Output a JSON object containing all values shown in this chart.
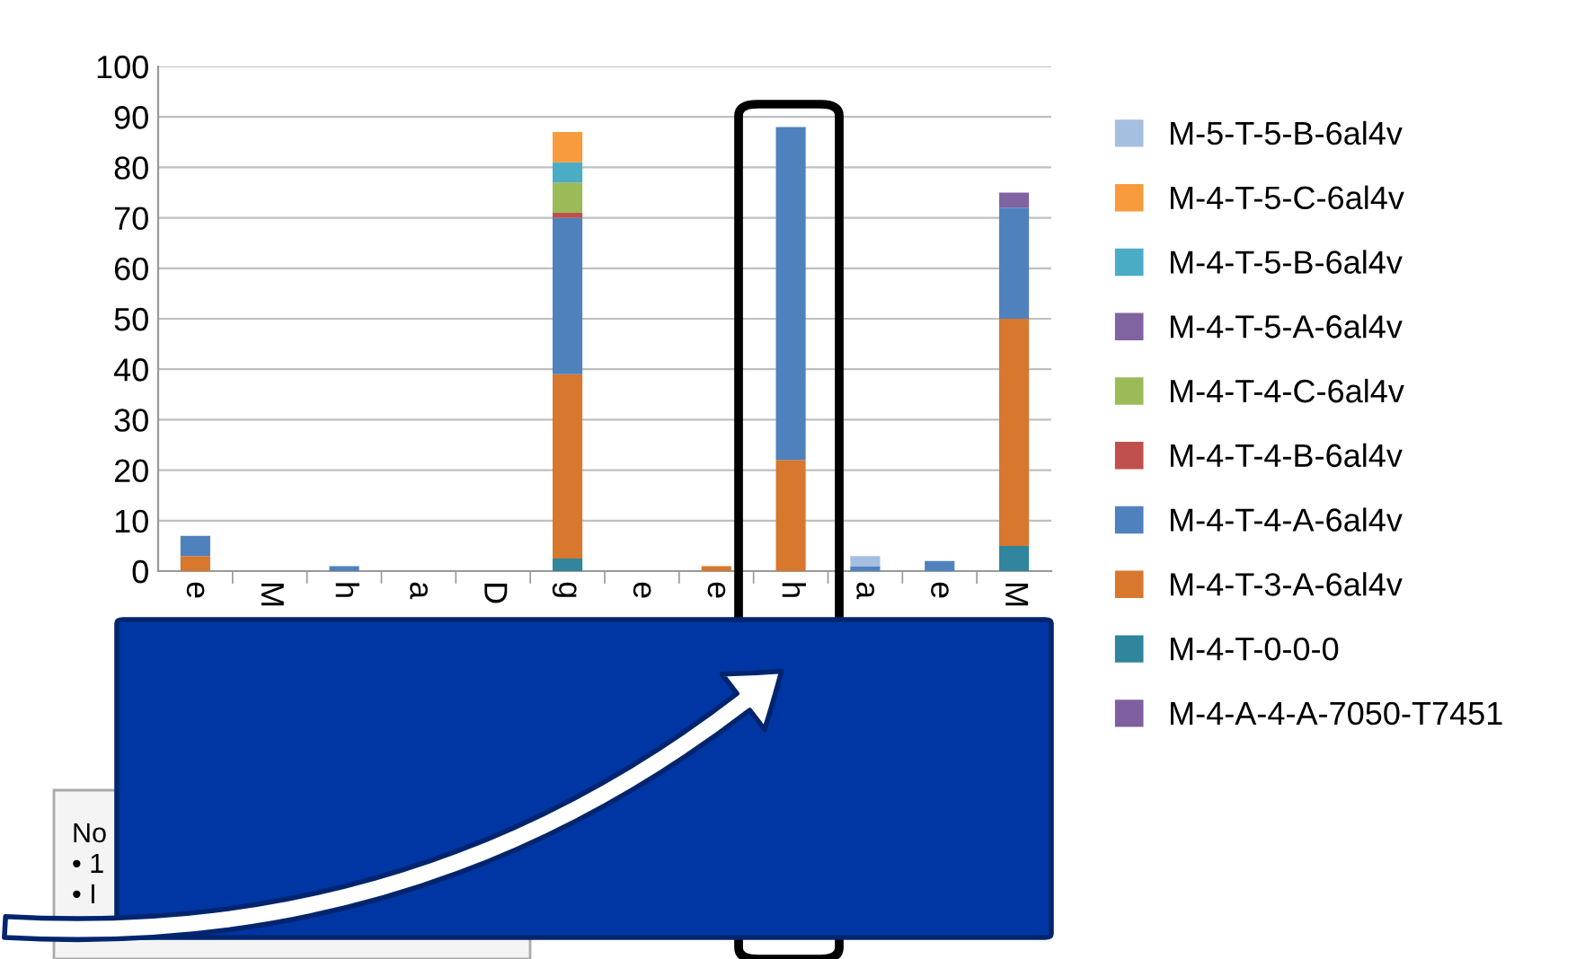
{
  "chart_data": {
    "type": "bar",
    "stacked": true,
    "categories": [
      "e",
      "M",
      "h",
      "a",
      "D",
      "g",
      "e",
      "e",
      "h",
      "a",
      "e",
      "M"
    ],
    "series": [
      {
        "name": "M-4-A-4-A-7050-T7451",
        "color": "#7f5f9f",
        "values": [
          0,
          0,
          0,
          0,
          0,
          0,
          0,
          0,
          0,
          0,
          0,
          0
        ]
      },
      {
        "name": "M-4-T-0-0-0",
        "color": "#31859c",
        "values": [
          0,
          0,
          0,
          0,
          0,
          2.5,
          0,
          0,
          0,
          0,
          0,
          5
        ]
      },
      {
        "name": "M-4-T-3-A-6al4v",
        "color": "#d8772e",
        "values": [
          3,
          0,
          0,
          0,
          0,
          36.5,
          0,
          1,
          22,
          0,
          0,
          45
        ]
      },
      {
        "name": "M-4-T-4-A-6al4v",
        "color": "#4f81bd",
        "values": [
          4,
          0,
          1,
          0,
          0,
          31,
          0,
          0,
          66,
          1,
          2,
          22
        ]
      },
      {
        "name": "M-4-T-4-B-6al4v",
        "color": "#c0504d",
        "values": [
          0,
          0,
          0,
          0,
          0,
          1,
          0,
          0,
          0,
          0,
          0,
          0
        ]
      },
      {
        "name": "M-4-T-4-C-6al4v",
        "color": "#9bbb59",
        "values": [
          0,
          0,
          0,
          0,
          0,
          6,
          0,
          0,
          0,
          0,
          0,
          0
        ]
      },
      {
        "name": "M-4-T-5-A-6al4v",
        "color": "#8064a2",
        "values": [
          0,
          0,
          0,
          0,
          0,
          0,
          0,
          0,
          0,
          0,
          0,
          3
        ]
      },
      {
        "name": "M-4-T-5-B-6al4v",
        "color": "#4bacc6",
        "values": [
          0,
          0,
          0,
          0,
          0,
          4,
          0,
          0,
          0,
          0,
          0,
          0
        ]
      },
      {
        "name": "M-4-T-5-C-6al4v",
        "color": "#f79b3c",
        "values": [
          0,
          0,
          0,
          0,
          0,
          6,
          0,
          0,
          0,
          0,
          0,
          0
        ]
      },
      {
        "name": "M-5-T-5-B-6al4v",
        "color": "#a5bfe0",
        "values": [
          0,
          0,
          0,
          0,
          0,
          0,
          0,
          0,
          0,
          2,
          0,
          0
        ]
      }
    ],
    "ylim": [
      0,
      100
    ],
    "yticks": [
      0,
      10,
      20,
      30,
      40,
      50,
      60,
      70,
      80,
      90,
      100
    ],
    "grid": "y",
    "legend": "right",
    "annotations": [
      "No",
      "• 1",
      "• I"
    ]
  }
}
